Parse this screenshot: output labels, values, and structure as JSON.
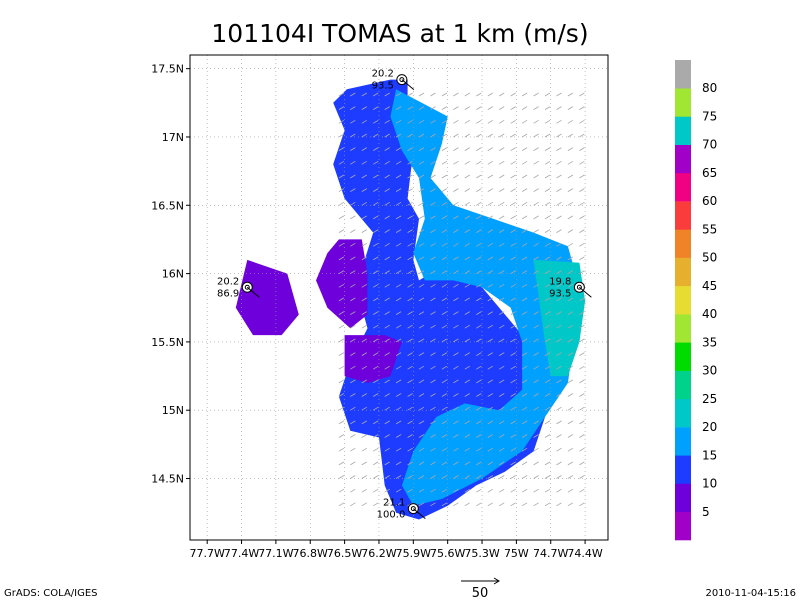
{
  "chart_data": {
    "type": "heatmap",
    "title": "101104I TOMAS at 1 km (m/s)",
    "xlim": [
      -77.85,
      -74.2
    ],
    "ylim": [
      14.05,
      17.6
    ],
    "x_ticks": [
      {
        "value": -77.7,
        "label": "77.7W"
      },
      {
        "value": -77.4,
        "label": "77.4W"
      },
      {
        "value": -77.1,
        "label": "77.1W"
      },
      {
        "value": -76.8,
        "label": "76.8W"
      },
      {
        "value": -76.5,
        "label": "76.5W"
      },
      {
        "value": -76.2,
        "label": "76.2W"
      },
      {
        "value": -75.9,
        "label": "75.9W"
      },
      {
        "value": -75.6,
        "label": "75.6W"
      },
      {
        "value": -75.3,
        "label": "75.3W"
      },
      {
        "value": -75.0,
        "label": "75W"
      },
      {
        "value": -74.7,
        "label": "74.7W"
      },
      {
        "value": -74.4,
        "label": "74.4W"
      }
    ],
    "y_ticks": [
      {
        "value": 14.5,
        "label": "14.5N"
      },
      {
        "value": 15.0,
        "label": "15N"
      },
      {
        "value": 15.5,
        "label": "15.5N"
      },
      {
        "value": 16.0,
        "label": "16N"
      },
      {
        "value": 16.5,
        "label": "16.5N"
      },
      {
        "value": 17.0,
        "label": "17N"
      },
      {
        "value": 17.5,
        "label": "17.5N"
      }
    ],
    "grid": true,
    "grid_x": [
      -77.7,
      -77.4,
      -77.1,
      -76.8,
      -76.5,
      -76.2,
      -75.9,
      -75.6,
      -75.3,
      -75.0,
      -74.7,
      -74.4
    ],
    "grid_y": [
      14.5,
      15.0,
      15.5,
      16.0,
      16.5,
      17.0,
      17.5
    ],
    "colorbar": {
      "labels": [
        "5",
        "10",
        "15",
        "20",
        "25",
        "30",
        "35",
        "40",
        "45",
        "50",
        "55",
        "60",
        "65",
        "70",
        "75",
        "80"
      ],
      "colors": [
        "#a000c8",
        "#6e00dc",
        "#1e3cff",
        "#00a0ff",
        "#00c8c8",
        "#00d28c",
        "#00dc00",
        "#a0e632",
        "#e6dc32",
        "#e6af2d",
        "#f08228",
        "#fa3c3c",
        "#f00082",
        "#a000c8",
        "#00c8c8",
        "#a0e632",
        "#aaaaaa"
      ]
    },
    "regions": [
      {
        "color": "#1e3cff",
        "polygon": [
          [
            -76.48,
            17.35
          ],
          [
            -76.1,
            17.42
          ],
          [
            -75.95,
            17.42
          ],
          [
            -75.95,
            17.2
          ],
          [
            -75.75,
            17.1
          ],
          [
            -75.9,
            16.9
          ],
          [
            -75.95,
            16.55
          ],
          [
            -75.85,
            16.4
          ],
          [
            -75.9,
            16.1
          ],
          [
            -75.85,
            15.95
          ],
          [
            -75.65,
            16.05
          ],
          [
            -75.4,
            16.0
          ],
          [
            -75.25,
            15.85
          ],
          [
            -75.05,
            15.65
          ],
          [
            -74.85,
            15.45
          ],
          [
            -74.75,
            15.2
          ],
          [
            -74.75,
            14.95
          ],
          [
            -74.85,
            14.7
          ],
          [
            -75.1,
            14.55
          ],
          [
            -75.35,
            14.45
          ],
          [
            -75.6,
            14.3
          ],
          [
            -75.85,
            14.2
          ],
          [
            -76.05,
            14.25
          ],
          [
            -76.15,
            14.45
          ],
          [
            -76.2,
            14.8
          ],
          [
            -76.45,
            14.85
          ],
          [
            -76.55,
            15.1
          ],
          [
            -76.45,
            15.35
          ],
          [
            -76.3,
            15.6
          ],
          [
            -76.4,
            15.9
          ],
          [
            -76.25,
            16.3
          ],
          [
            -76.5,
            16.55
          ],
          [
            -76.6,
            16.8
          ],
          [
            -76.5,
            17.05
          ],
          [
            -76.6,
            17.25
          ]
        ]
      },
      {
        "color": "#00a0ff",
        "polygon": [
          [
            -76.05,
            17.35
          ],
          [
            -75.6,
            17.15
          ],
          [
            -75.65,
            16.95
          ],
          [
            -75.75,
            16.7
          ],
          [
            -75.55,
            16.5
          ],
          [
            -75.2,
            16.4
          ],
          [
            -74.85,
            16.3
          ],
          [
            -74.55,
            16.2
          ],
          [
            -74.45,
            15.9
          ],
          [
            -74.5,
            15.5
          ],
          [
            -74.55,
            15.2
          ],
          [
            -74.75,
            14.95
          ],
          [
            -74.95,
            14.7
          ],
          [
            -75.3,
            14.5
          ],
          [
            -75.65,
            14.35
          ],
          [
            -75.9,
            14.3
          ],
          [
            -76.0,
            14.45
          ],
          [
            -75.9,
            14.7
          ],
          [
            -75.7,
            14.95
          ],
          [
            -75.45,
            15.05
          ],
          [
            -75.15,
            15.0
          ],
          [
            -74.95,
            15.15
          ],
          [
            -74.95,
            15.5
          ],
          [
            -75.05,
            15.75
          ],
          [
            -75.3,
            15.9
          ],
          [
            -75.55,
            15.95
          ],
          [
            -75.8,
            15.95
          ],
          [
            -75.9,
            16.15
          ],
          [
            -75.8,
            16.4
          ],
          [
            -75.85,
            16.7
          ],
          [
            -76.0,
            16.9
          ],
          [
            -76.1,
            17.15
          ]
        ]
      },
      {
        "color": "#00c8c8",
        "polygon": [
          [
            -74.85,
            16.1
          ],
          [
            -74.45,
            16.08
          ],
          [
            -74.4,
            15.8
          ],
          [
            -74.45,
            15.5
          ],
          [
            -74.55,
            15.25
          ],
          [
            -74.7,
            15.25
          ],
          [
            -74.75,
            15.5
          ],
          [
            -74.8,
            15.8
          ]
        ]
      },
      {
        "color": "#6e00dc",
        "polygon": [
          [
            -76.55,
            16.25
          ],
          [
            -76.35,
            16.25
          ],
          [
            -76.3,
            16.0
          ],
          [
            -76.3,
            15.7
          ],
          [
            -76.45,
            15.6
          ],
          [
            -76.65,
            15.75
          ],
          [
            -76.75,
            15.95
          ],
          [
            -76.65,
            16.15
          ]
        ]
      },
      {
        "color": "#6e00dc",
        "polygon": [
          [
            -76.5,
            15.55
          ],
          [
            -76.15,
            15.55
          ],
          [
            -76.0,
            15.5
          ],
          [
            -76.1,
            15.25
          ],
          [
            -76.3,
            15.2
          ],
          [
            -76.5,
            15.25
          ]
        ]
      },
      {
        "color": "#6e00dc",
        "polygon": [
          [
            -77.35,
            16.1
          ],
          [
            -77.0,
            16.0
          ],
          [
            -76.9,
            15.7
          ],
          [
            -77.05,
            15.55
          ],
          [
            -77.3,
            15.55
          ],
          [
            -77.45,
            15.75
          ]
        ]
      }
    ],
    "wind_region": {
      "xlim": [
        -76.55,
        -74.45
      ],
      "ylim": [
        14.3,
        17.3
      ]
    },
    "wind_direction": "northeast",
    "observations": [
      {
        "lon": -76.0,
        "lat": 17.42,
        "label_top": "20.2",
        "label_bottom": "93.5"
      },
      {
        "lon": -77.35,
        "lat": 15.9,
        "label_top": "20.2",
        "label_bottom": "86.9"
      },
      {
        "lon": -74.45,
        "lat": 15.9,
        "label_top": "19.8",
        "label_bottom": "93.5"
      },
      {
        "lon": -75.9,
        "lat": 14.28,
        "label_top": "21.1",
        "label_bottom": "100.0"
      }
    ],
    "reference_vector_label": "50",
    "footer_left": "GrADS: COLA/IGES",
    "footer_right": "2010-11-04-15:16"
  }
}
